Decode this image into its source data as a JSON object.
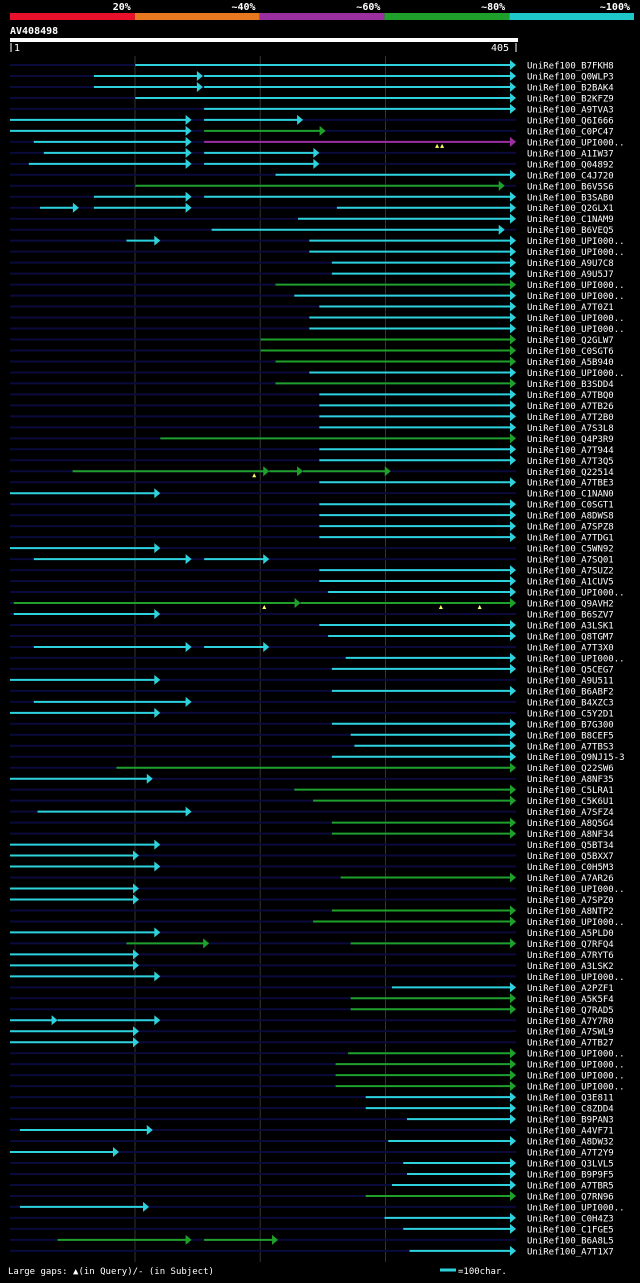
{
  "legend": {
    "labels": [
      "20%",
      "~40%",
      "~60%",
      "~80%",
      "~100%"
    ],
    "colors": [
      "#e8102a",
      "#e87820",
      "#9b2fa0",
      "#1ea02a",
      "#1ec8c8"
    ]
  },
  "query": {
    "id": "AV408498",
    "start": "1",
    "end": "405",
    "length": 405
  },
  "colors": {
    "cyan": "#2dd2dc",
    "green": "#1ea02a",
    "purple": "#9b2fa0",
    "track": "#0a0a3c",
    "gridline": "#333333"
  },
  "gridlines": [
    100,
    200,
    300
  ],
  "hits": [
    {
      "name": "UniRef100_B7FKH8",
      "segs": [
        [
          101,
          405,
          "c"
        ]
      ]
    },
    {
      "name": "UniRef100_Q0WLP3",
      "segs": [
        [
          68,
          155,
          "c"
        ],
        [
          156,
          405,
          "c"
        ]
      ]
    },
    {
      "name": "UniRef100_B2BAK4",
      "segs": [
        [
          68,
          155,
          "c"
        ],
        [
          156,
          405,
          "c"
        ]
      ]
    },
    {
      "name": "UniRef100_B2KFZ9",
      "segs": [
        [
          101,
          405,
          "c"
        ]
      ]
    },
    {
      "name": "UniRef100_A9TVA3",
      "segs": [
        [
          156,
          405,
          "c"
        ]
      ]
    },
    {
      "name": "UniRef100_Q6I666",
      "segs": [
        [
          1,
          146,
          "c"
        ],
        [
          156,
          235,
          "c"
        ]
      ]
    },
    {
      "name": "UniRef100_C0PC47",
      "segs": [
        [
          1,
          146,
          "c"
        ],
        [
          156,
          253,
          "g"
        ]
      ]
    },
    {
      "name": "UniRef100_UPI000..",
      "segs": [
        [
          20,
          146,
          "c"
        ],
        [
          156,
          405,
          "p"
        ]
      ],
      "marks": [
        [
          342,
          "a"
        ],
        [
          346,
          "a"
        ]
      ]
    },
    {
      "name": "UniRef100_A1IW37",
      "segs": [
        [
          28,
          146,
          "c"
        ],
        [
          156,
          248,
          "c"
        ]
      ]
    },
    {
      "name": "UniRef100_Q04892",
      "segs": [
        [
          16,
          146,
          "c"
        ],
        [
          156,
          248,
          "c"
        ]
      ]
    },
    {
      "name": "UniRef100_C4J720",
      "segs": [
        [
          213,
          405,
          "c"
        ]
      ]
    },
    {
      "name": "UniRef100_B6V5S6",
      "segs": [
        [
          101,
          396,
          "g"
        ]
      ]
    },
    {
      "name": "UniRef100_B3SAB0",
      "segs": [
        [
          68,
          146,
          "c"
        ],
        [
          156,
          405,
          "c"
        ]
      ]
    },
    {
      "name": "UniRef100_Q2GLX1",
      "segs": [
        [
          25,
          56,
          "c"
        ],
        [
          68,
          146,
          "c"
        ],
        [
          262,
          405,
          "c"
        ]
      ]
    },
    {
      "name": "UniRef100_C1NAM9",
      "segs": [
        [
          231,
          405,
          "c"
        ]
      ]
    },
    {
      "name": "UniRef100_B6VEQ5",
      "segs": [
        [
          162,
          396,
          "c"
        ]
      ]
    },
    {
      "name": "UniRef100_UPI000..",
      "segs": [
        [
          94,
          121,
          "c"
        ],
        [
          240,
          405,
          "c"
        ]
      ]
    },
    {
      "name": "UniRef100_UPI000..",
      "segs": [
        [
          240,
          405,
          "c"
        ]
      ]
    },
    {
      "name": "UniRef100_A9U7C8",
      "segs": [
        [
          258,
          405,
          "c"
        ]
      ]
    },
    {
      "name": "UniRef100_A9U5J7",
      "segs": [
        [
          258,
          405,
          "c"
        ]
      ]
    },
    {
      "name": "UniRef100_UPI000..",
      "segs": [
        [
          213,
          405,
          "g"
        ]
      ]
    },
    {
      "name": "UniRef100_UPI000..",
      "segs": [
        [
          228,
          405,
          "c"
        ]
      ]
    },
    {
      "name": "UniRef100_A7T0Z1",
      "segs": [
        [
          248,
          405,
          "c"
        ]
      ]
    },
    {
      "name": "UniRef100_UPI000..",
      "segs": [
        [
          240,
          405,
          "c"
        ]
      ]
    },
    {
      "name": "UniRef100_UPI000..",
      "segs": [
        [
          240,
          405,
          "c"
        ]
      ]
    },
    {
      "name": "UniRef100_Q2GLW7",
      "segs": [
        [
          201,
          405,
          "g"
        ]
      ]
    },
    {
      "name": "UniRef100_C0SGT6",
      "segs": [
        [
          201,
          405,
          "g"
        ]
      ]
    },
    {
      "name": "UniRef100_A5B940",
      "segs": [
        [
          213,
          405,
          "g"
        ]
      ]
    },
    {
      "name": "UniRef100_UPI000..",
      "segs": [
        [
          240,
          405,
          "c"
        ]
      ]
    },
    {
      "name": "UniRef100_B3SDD4",
      "segs": [
        [
          213,
          405,
          "g"
        ]
      ]
    },
    {
      "name": "UniRef100_A7TBQ0",
      "segs": [
        [
          248,
          405,
          "c"
        ]
      ]
    },
    {
      "name": "UniRef100_A7TB26",
      "segs": [
        [
          248,
          405,
          "c"
        ]
      ]
    },
    {
      "name": "UniRef100_A7T2B0",
      "segs": [
        [
          248,
          405,
          "c"
        ]
      ]
    },
    {
      "name": "UniRef100_A7S3L8",
      "segs": [
        [
          248,
          405,
          "c"
        ]
      ]
    },
    {
      "name": "UniRef100_Q4P3R9",
      "segs": [
        [
          121,
          405,
          "g"
        ]
      ]
    },
    {
      "name": "UniRef100_A7T944",
      "segs": [
        [
          248,
          405,
          "c"
        ]
      ]
    },
    {
      "name": "UniRef100_A7T3Q5",
      "segs": [
        [
          248,
          405,
          "c"
        ]
      ]
    },
    {
      "name": "UniRef100_Q22514",
      "segs": [
        [
          51,
          208,
          "g"
        ],
        [
          208,
          235,
          "g"
        ],
        [
          235,
          305,
          "g"
        ]
      ],
      "marks": [
        [
          196,
          "a"
        ]
      ]
    },
    {
      "name": "UniRef100_A7TBE3",
      "segs": [
        [
          248,
          405,
          "c"
        ]
      ]
    },
    {
      "name": "UniRef100_C1NAN0",
      "segs": [
        [
          1,
          121,
          "c"
        ]
      ]
    },
    {
      "name": "UniRef100_C0SGT1",
      "segs": [
        [
          248,
          405,
          "c"
        ]
      ]
    },
    {
      "name": "UniRef100_A8DWS8",
      "segs": [
        [
          248,
          405,
          "c"
        ]
      ]
    },
    {
      "name": "UniRef100_A7SPZ8",
      "segs": [
        [
          248,
          405,
          "c"
        ]
      ]
    },
    {
      "name": "UniRef100_A7TDG1",
      "segs": [
        [
          248,
          405,
          "c"
        ]
      ]
    },
    {
      "name": "UniRef100_C5WN92",
      "segs": [
        [
          1,
          121,
          "c"
        ]
      ]
    },
    {
      "name": "UniRef100_A7SQ01",
      "segs": [
        [
          20,
          146,
          "c"
        ],
        [
          156,
          208,
          "c"
        ]
      ]
    },
    {
      "name": "UniRef100_A7SUZ2",
      "segs": [
        [
          248,
          405,
          "c"
        ]
      ]
    },
    {
      "name": "UniRef100_A1CUV5",
      "segs": [
        [
          248,
          405,
          "c"
        ]
      ]
    },
    {
      "name": "UniRef100_UPI000..",
      "segs": [
        [
          255,
          405,
          "c"
        ]
      ]
    },
    {
      "name": "UniRef100_Q9AVH2",
      "segs": [
        [
          4,
          233,
          "g"
        ],
        [
          233,
          405,
          "g"
        ]
      ],
      "marks": [
        [
          204,
          "a"
        ],
        [
          345,
          "a"
        ],
        [
          376,
          "a"
        ]
      ]
    },
    {
      "name": "UniRef100_B6SZV7",
      "segs": [
        [
          4,
          121,
          "c"
        ]
      ]
    },
    {
      "name": "UniRef100_A3LSK1",
      "segs": [
        [
          248,
          405,
          "c"
        ]
      ]
    },
    {
      "name": "UniRef100_Q8TGM7",
      "segs": [
        [
          255,
          405,
          "c"
        ]
      ]
    },
    {
      "name": "UniRef100_A7T3X0",
      "segs": [
        [
          20,
          146,
          "c"
        ],
        [
          156,
          208,
          "c"
        ]
      ]
    },
    {
      "name": "UniRef100_UPI000..",
      "segs": [
        [
          269,
          405,
          "c"
        ]
      ]
    },
    {
      "name": "UniRef100_Q5CEG7",
      "segs": [
        [
          258,
          405,
          "c"
        ]
      ]
    },
    {
      "name": "UniRef100_A9U511",
      "segs": [
        [
          1,
          121,
          "c"
        ]
      ]
    },
    {
      "name": "UniRef100_B6ABF2",
      "segs": [
        [
          258,
          405,
          "c"
        ]
      ]
    },
    {
      "name": "UniRef100_B4XZC3",
      "segs": [
        [
          20,
          146,
          "c"
        ]
      ]
    },
    {
      "name": "UniRef100_C5Y2D1",
      "segs": [
        [
          1,
          121,
          "c"
        ]
      ]
    },
    {
      "name": "UniRef100_B7G300",
      "segs": [
        [
          258,
          405,
          "c"
        ]
      ]
    },
    {
      "name": "UniRef100_B8CEF5",
      "segs": [
        [
          273,
          405,
          "c"
        ]
      ]
    },
    {
      "name": "UniRef100_A7TBS3",
      "segs": [
        [
          276,
          405,
          "c"
        ]
      ]
    },
    {
      "name": "UniRef100_Q9NJ15-3",
      "segs": [
        [
          258,
          405,
          "c"
        ]
      ]
    },
    {
      "name": "UniRef100_Q22SW6",
      "segs": [
        [
          86,
          405,
          "g"
        ]
      ]
    },
    {
      "name": "UniRef100_A8NF35",
      "segs": [
        [
          1,
          115,
          "c"
        ]
      ]
    },
    {
      "name": "UniRef100_C5LRA1",
      "segs": [
        [
          228,
          405,
          "g"
        ]
      ]
    },
    {
      "name": "UniRef100_C5K6U1",
      "segs": [
        [
          243,
          405,
          "g"
        ]
      ]
    },
    {
      "name": "UniRef100_A7SFZ4",
      "segs": [
        [
          23,
          146,
          "c"
        ]
      ]
    },
    {
      "name": "UniRef100_A8Q5G4",
      "segs": [
        [
          258,
          405,
          "g"
        ]
      ]
    },
    {
      "name": "UniRef100_A8NF34",
      "segs": [
        [
          258,
          405,
          "g"
        ]
      ]
    },
    {
      "name": "UniRef100_Q5BT34",
      "segs": [
        [
          1,
          121,
          "c"
        ]
      ]
    },
    {
      "name": "UniRef100_Q5BXX7",
      "segs": [
        [
          1,
          104,
          "c"
        ]
      ]
    },
    {
      "name": "UniRef100_C0H5M3",
      "segs": [
        [
          1,
          121,
          "c"
        ]
      ]
    },
    {
      "name": "UniRef100_A7AR26",
      "segs": [
        [
          265,
          405,
          "g"
        ]
      ]
    },
    {
      "name": "UniRef100_UPI000..",
      "segs": [
        [
          1,
          104,
          "c"
        ]
      ]
    },
    {
      "name": "UniRef100_A7SPZ0",
      "segs": [
        [
          1,
          104,
          "c"
        ]
      ]
    },
    {
      "name": "UniRef100_A8NTP2",
      "segs": [
        [
          258,
          405,
          "g"
        ]
      ]
    },
    {
      "name": "UniRef100_UPI000..",
      "segs": [
        [
          243,
          405,
          "g"
        ]
      ]
    },
    {
      "name": "UniRef100_A5PLD0",
      "segs": [
        [
          1,
          121,
          "c"
        ]
      ]
    },
    {
      "name": "UniRef100_Q7RFQ4",
      "segs": [
        [
          94,
          160,
          "g"
        ],
        [
          273,
          405,
          "g"
        ]
      ]
    },
    {
      "name": "UniRef100_A7RYT6",
      "segs": [
        [
          1,
          104,
          "c"
        ]
      ]
    },
    {
      "name": "UniRef100_A3LSK2",
      "segs": [
        [
          1,
          104,
          "c"
        ]
      ]
    },
    {
      "name": "UniRef100_UPI000..",
      "segs": [
        [
          1,
          121,
          "c"
        ]
      ]
    },
    {
      "name": "UniRef100_A2PZF1",
      "segs": [
        [
          306,
          405,
          "c"
        ]
      ]
    },
    {
      "name": "UniRef100_A5K5F4",
      "segs": [
        [
          273,
          405,
          "g"
        ]
      ]
    },
    {
      "name": "UniRef100_Q7RAD5",
      "segs": [
        [
          273,
          405,
          "g"
        ]
      ]
    },
    {
      "name": "UniRef100_A7Y7R0",
      "segs": [
        [
          1,
          39,
          "c"
        ],
        [
          39,
          121,
          "c"
        ]
      ]
    },
    {
      "name": "UniRef100_A7SWL9",
      "segs": [
        [
          1,
          104,
          "c"
        ]
      ]
    },
    {
      "name": "UniRef100_A7TB27",
      "segs": [
        [
          1,
          104,
          "c"
        ]
      ]
    },
    {
      "name": "UniRef100_UPI000..",
      "segs": [
        [
          271,
          405,
          "g"
        ]
      ]
    },
    {
      "name": "UniRef100_UPI000..",
      "segs": [
        [
          261,
          405,
          "g"
        ]
      ]
    },
    {
      "name": "UniRef100_UPI000..",
      "segs": [
        [
          261,
          405,
          "g"
        ]
      ]
    },
    {
      "name": "UniRef100_UPI000..",
      "segs": [
        [
          261,
          405,
          "g"
        ]
      ]
    },
    {
      "name": "UniRef100_Q3E811",
      "segs": [
        [
          285,
          405,
          "c"
        ]
      ]
    },
    {
      "name": "UniRef100_C8ZDD4",
      "segs": [
        [
          285,
          405,
          "c"
        ]
      ]
    },
    {
      "name": "UniRef100_B9PAN3",
      "segs": [
        [
          318,
          405,
          "c"
        ]
      ]
    },
    {
      "name": "UniRef100_A4VF71",
      "segs": [
        [
          9,
          115,
          "c"
        ]
      ]
    },
    {
      "name": "UniRef100_A8DW32",
      "segs": [
        [
          303,
          405,
          "c"
        ]
      ]
    },
    {
      "name": "UniRef100_A7T2Y9",
      "segs": [
        [
          1,
          88,
          "c"
        ]
      ]
    },
    {
      "name": "UniRef100_Q3LVL5",
      "segs": [
        [
          315,
          405,
          "c"
        ]
      ]
    },
    {
      "name": "UniRef100_B9P9F5",
      "segs": [
        [
          318,
          405,
          "c"
        ]
      ]
    },
    {
      "name": "UniRef100_A7TBR5",
      "segs": [
        [
          306,
          405,
          "c"
        ]
      ]
    },
    {
      "name": "UniRef100_Q7RN96",
      "segs": [
        [
          285,
          405,
          "g"
        ]
      ]
    },
    {
      "name": "UniRef100_UPI000..",
      "segs": [
        [
          9,
          112,
          "c"
        ]
      ]
    },
    {
      "name": "UniRef100_C0H4Z3",
      "segs": [
        [
          300,
          405,
          "c"
        ]
      ]
    },
    {
      "name": "UniRef100_C1FGE5",
      "segs": [
        [
          315,
          405,
          "c"
        ]
      ]
    },
    {
      "name": "UniRef100_B6A8L5",
      "segs": [
        [
          39,
          146,
          "g"
        ],
        [
          156,
          215,
          "g"
        ]
      ]
    },
    {
      "name": "UniRef100_A7T1X7",
      "segs": [
        [
          320,
          405,
          "c"
        ]
      ]
    }
  ],
  "footer": {
    "gaps_text": "Large gaps: ▲(in Query)/- (in Subject)",
    "scale_text": "=100char."
  }
}
